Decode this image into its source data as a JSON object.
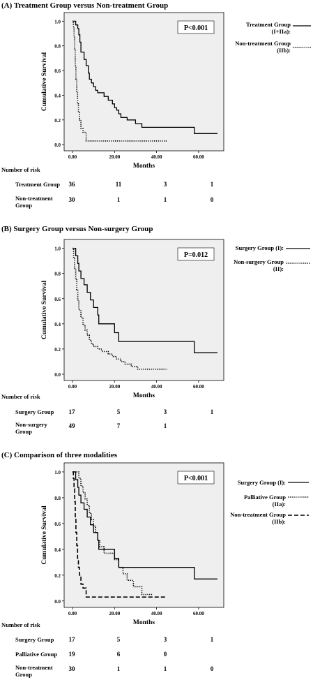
{
  "chart_data": [
    {
      "type": "line",
      "title": "(A) Treatment Group versus Non-treatment Group",
      "xlabel": "Months",
      "ylabel": "Cumulative Survival",
      "annotation": "P<0.001",
      "xticks": [
        "0.00",
        "20.00",
        "40.00",
        "60.00"
      ],
      "yticks": [
        "0.0",
        "0.2",
        "0.4",
        "0.6",
        "0.8",
        "1.0"
      ],
      "xlim": [
        -4,
        72
      ],
      "ylim": [
        -0.05,
        1.07
      ],
      "legend_position": "right",
      "series": [
        {
          "name": "Treatment Group (I+IIa):",
          "style": "solid",
          "points": [
            [
              0,
              1.0
            ],
            [
              1.5,
              1.0
            ],
            [
              1.5,
              0.97
            ],
            [
              2.5,
              0.94
            ],
            [
              3,
              0.89
            ],
            [
              3.5,
              0.83
            ],
            [
              4,
              0.75
            ],
            [
              5.5,
              0.69
            ],
            [
              6.5,
              0.64
            ],
            [
              7.5,
              0.58
            ],
            [
              8,
              0.53
            ],
            [
              9,
              0.5
            ],
            [
              10,
              0.47
            ],
            [
              11,
              0.44
            ],
            [
              12,
              0.42
            ],
            [
              15,
              0.39
            ],
            [
              17,
              0.36
            ],
            [
              19,
              0.33
            ],
            [
              20,
              0.3
            ],
            [
              21,
              0.28
            ],
            [
              22,
              0.25
            ],
            [
              23,
              0.22
            ],
            [
              26,
              0.2
            ],
            [
              30,
              0.17
            ],
            [
              33,
              0.14
            ],
            [
              58,
              0.14
            ],
            [
              58,
              0.09
            ],
            [
              69,
              0.09
            ]
          ]
        },
        {
          "name": "Non-treatment Group (IIb):",
          "style": "dotted",
          "points": [
            [
              0,
              1.0
            ],
            [
              0.4,
              0.95
            ],
            [
              0.7,
              0.87
            ],
            [
              1,
              0.77
            ],
            [
              1.3,
              0.64
            ],
            [
              1.6,
              0.53
            ],
            [
              2,
              0.43
            ],
            [
              2.4,
              0.33
            ],
            [
              2.8,
              0.26
            ],
            [
              3.3,
              0.2
            ],
            [
              4,
              0.13
            ],
            [
              5,
              0.1
            ],
            [
              6.5,
              0.03
            ],
            [
              45,
              0.03
            ]
          ]
        }
      ],
      "risk_table": {
        "header": "Number of risk",
        "rows": [
          {
            "label": [
              "Treatment Group"
            ],
            "values": [
              "36",
              "11",
              "3",
              "1"
            ]
          },
          {
            "label": [
              "Non-treatment",
              "Group"
            ],
            "values": [
              "30",
              "1",
              "1",
              "0"
            ]
          }
        ]
      }
    },
    {
      "type": "line",
      "title": "(B) Surgery Group versus Non-surgery Group",
      "xlabel": "Months",
      "ylabel": "Cumulative Survival",
      "annotation": "P=0.012",
      "xticks": [
        "0.00",
        "20.00",
        "40.00",
        "60.00"
      ],
      "yticks": [
        "0.0",
        "0.2",
        "0.4",
        "0.6",
        "0.8",
        "1.0"
      ],
      "xlim": [
        -4,
        72
      ],
      "ylim": [
        -0.05,
        1.07
      ],
      "legend_position": "right",
      "series": [
        {
          "name": "Surgery Group (I):",
          "style": "solid",
          "points": [
            [
              0,
              1.0
            ],
            [
              1.5,
              1.0
            ],
            [
              1.5,
              0.94
            ],
            [
              2.5,
              0.88
            ],
            [
              3,
              0.82
            ],
            [
              4,
              0.76
            ],
            [
              5.5,
              0.71
            ],
            [
              7,
              0.65
            ],
            [
              8.5,
              0.59
            ],
            [
              10,
              0.53
            ],
            [
              12,
              0.47
            ],
            [
              12.5,
              0.4
            ],
            [
              20,
              0.4
            ],
            [
              20,
              0.33
            ],
            [
              22,
              0.26
            ],
            [
              58,
              0.26
            ],
            [
              58,
              0.17
            ],
            [
              69,
              0.17
            ]
          ]
        },
        {
          "name": "Non-surgery Group (II):",
          "style": "dotted",
          "points": [
            [
              0,
              1.0
            ],
            [
              0.5,
              0.92
            ],
            [
              1,
              0.84
            ],
            [
              1.5,
              0.76
            ],
            [
              2,
              0.67
            ],
            [
              2.5,
              0.59
            ],
            [
              3,
              0.51
            ],
            [
              4,
              0.45
            ],
            [
              5,
              0.39
            ],
            [
              6,
              0.35
            ],
            [
              7,
              0.31
            ],
            [
              8,
              0.27
            ],
            [
              9,
              0.24
            ],
            [
              10,
              0.22
            ],
            [
              12,
              0.2
            ],
            [
              14,
              0.18
            ],
            [
              17,
              0.16
            ],
            [
              19,
              0.14
            ],
            [
              21,
              0.12
            ],
            [
              23,
              0.1
            ],
            [
              25,
              0.08
            ],
            [
              28,
              0.06
            ],
            [
              31,
              0.04
            ],
            [
              45,
              0.04
            ]
          ]
        }
      ],
      "risk_table": {
        "header": "Number of risk",
        "rows": [
          {
            "label": [
              "Surgery Group"
            ],
            "values": [
              "17",
              "5",
              "3",
              "1"
            ]
          },
          {
            "label": [
              "Non-surgery",
              "Group"
            ],
            "values": [
              "49",
              "7",
              "1",
              ""
            ]
          }
        ]
      }
    },
    {
      "type": "line",
      "title": "(C) Comparison of three modalities",
      "xlabel": "Months",
      "ylabel": "Cumulative Survival",
      "annotation": "P<0.001",
      "xticks": [
        "0.00",
        "20.00",
        "40.00",
        "60.00"
      ],
      "yticks": [
        "0.0",
        "0.2",
        "0.4",
        "0.6",
        "0.8",
        "1.0"
      ],
      "xlim": [
        -4,
        72
      ],
      "ylim": [
        -0.05,
        1.07
      ],
      "legend_position": "right",
      "series": [
        {
          "name": "Surgery Group (I):",
          "style": "solid",
          "points": [
            [
              0,
              1.0
            ],
            [
              1.5,
              1.0
            ],
            [
              1.5,
              0.94
            ],
            [
              2.5,
              0.88
            ],
            [
              3,
              0.82
            ],
            [
              4,
              0.76
            ],
            [
              5.5,
              0.71
            ],
            [
              7,
              0.65
            ],
            [
              8.5,
              0.59
            ],
            [
              10,
              0.53
            ],
            [
              12,
              0.47
            ],
            [
              12.5,
              0.4
            ],
            [
              20,
              0.4
            ],
            [
              20,
              0.33
            ],
            [
              22,
              0.26
            ],
            [
              58,
              0.26
            ],
            [
              58,
              0.17
            ],
            [
              69,
              0.17
            ]
          ]
        },
        {
          "name": "Palliative Group (IIa):",
          "style": "dotted",
          "points": [
            [
              0,
              1.0
            ],
            [
              3,
              1.0
            ],
            [
              3,
              0.95
            ],
            [
              4,
              0.89
            ],
            [
              5,
              0.84
            ],
            [
              6,
              0.79
            ],
            [
              7,
              0.74
            ],
            [
              8,
              0.68
            ],
            [
              9,
              0.63
            ],
            [
              10,
              0.58
            ],
            [
              11,
              0.53
            ],
            [
              12,
              0.47
            ],
            [
              13,
              0.42
            ],
            [
              15,
              0.37
            ],
            [
              18,
              0.37
            ],
            [
              20,
              0.32
            ],
            [
              22,
              0.26
            ],
            [
              24,
              0.21
            ],
            [
              26,
              0.16
            ],
            [
              29,
              0.11
            ],
            [
              33,
              0.05
            ],
            [
              38,
              0.05
            ]
          ]
        },
        {
          "name": "Non-treatment Group (IIb):",
          "style": "dashed",
          "points": [
            [
              0,
              1.0
            ],
            [
              0.4,
              0.95
            ],
            [
              0.7,
              0.87
            ],
            [
              1,
              0.77
            ],
            [
              1.3,
              0.64
            ],
            [
              1.6,
              0.53
            ],
            [
              2,
              0.43
            ],
            [
              2.4,
              0.33
            ],
            [
              2.8,
              0.26
            ],
            [
              3.3,
              0.2
            ],
            [
              4,
              0.13
            ],
            [
              5,
              0.1
            ],
            [
              6.5,
              0.03
            ],
            [
              45,
              0.03
            ]
          ]
        }
      ],
      "risk_table": {
        "header": "Number of risk",
        "rows": [
          {
            "label": [
              "Surgery Group"
            ],
            "values": [
              "17",
              "5",
              "3",
              "1"
            ]
          },
          {
            "label": [
              "Palliative Group"
            ],
            "values": [
              "19",
              "6",
              "0",
              ""
            ]
          },
          {
            "label": [
              "Non-treatment",
              "Group"
            ],
            "values": [
              "30",
              "1",
              "1",
              "0"
            ]
          }
        ]
      }
    }
  ],
  "colors": {
    "plot_bg": "#efefef",
    "line": "#000000"
  }
}
